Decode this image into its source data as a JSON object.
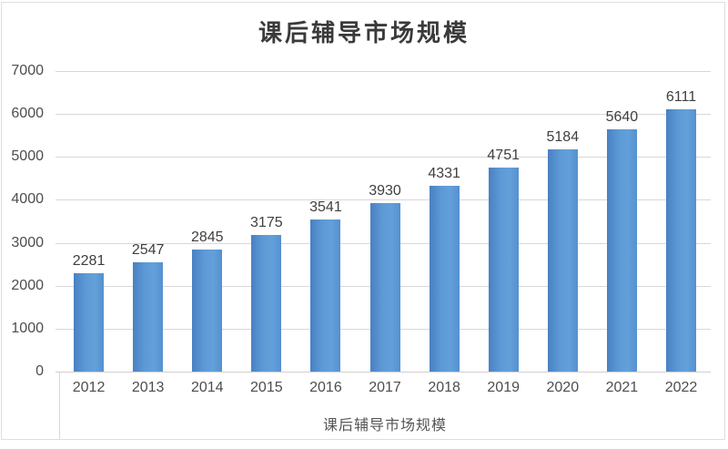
{
  "chart_data": {
    "type": "bar",
    "title": "课后辅导市场规模",
    "categories": [
      "2012",
      "2013",
      "2014",
      "2015",
      "2016",
      "2017",
      "2018",
      "2019",
      "2020",
      "2021",
      "2022"
    ],
    "values": [
      2281,
      2547,
      2845,
      3175,
      3541,
      3930,
      4331,
      4751,
      5184,
      5640,
      6111
    ],
    "series": [
      {
        "name": "课后辅导市场规模",
        "values": [
          2281,
          2547,
          2845,
          3175,
          3541,
          3930,
          4331,
          4751,
          5184,
          5640,
          6111
        ]
      }
    ],
    "xlabel": "课后辅导市场规模",
    "ylabel": "",
    "ylim": [
      0,
      7000
    ],
    "ytick_step": 1000,
    "yticks": [
      0,
      1000,
      2000,
      3000,
      4000,
      5000,
      6000,
      7000
    ],
    "grid": true,
    "legend_position": "none",
    "data_labels": true,
    "colors": {
      "bar": "#5b9bd5",
      "bar_edge_dark": "#4a80c2",
      "gridline": "#d8d8d8",
      "axis_label": "#4d4d4d",
      "value_label": "#3f3f3f",
      "title": "#3a3a3a",
      "frame_border": "#dedede"
    }
  }
}
